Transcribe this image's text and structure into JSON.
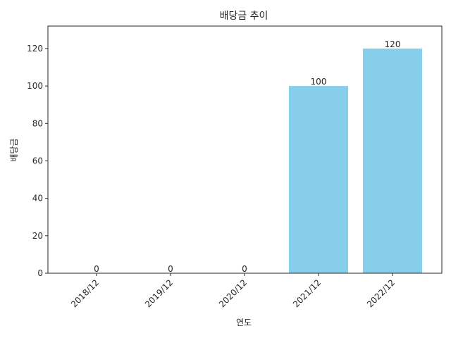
{
  "chart_data": {
    "type": "bar",
    "title": "배당금 추이",
    "xlabel": "연도",
    "ylabel": "배당금",
    "categories": [
      "2018/12",
      "2019/12",
      "2020/12",
      "2021/12",
      "2022/12"
    ],
    "values": [
      0,
      0,
      0,
      100,
      120
    ],
    "data_labels": [
      "0",
      "0",
      "0",
      "100",
      "120"
    ],
    "ylim": [
      0,
      132
    ],
    "yticks": [
      0,
      20,
      40,
      60,
      80,
      100,
      120
    ],
    "ytick_labels": [
      "0",
      "20",
      "40",
      "60",
      "80",
      "100",
      "120"
    ],
    "bar_color": "#87CEEB",
    "grid": false,
    "legend": "none"
  }
}
